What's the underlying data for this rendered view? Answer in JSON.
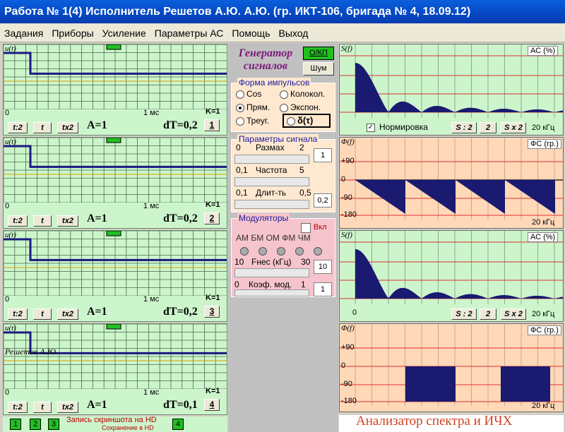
{
  "title": "Работа № 1(4)  Исполнитель Решетов А.Ю.  А.Ю. (гр. ИКТ-106, бригада № 4, 18.09.12)",
  "menu": [
    "Задания",
    "Приборы",
    "Усиление",
    "Параметры АС",
    "Помощь",
    "Выход"
  ],
  "osc": [
    {
      "ylabel": "u(t)",
      "x0": "0",
      "x1": "1 мс",
      "k": "K=1",
      "b1": "t:2",
      "b2": "t",
      "b3": "tx2",
      "amp": "A=1",
      "dt": "dT=0,2",
      "num": "1",
      "signature": "",
      "level": 0.55
    },
    {
      "ylabel": "u(t)",
      "x0": "0",
      "x1": "1 мс",
      "k": "K=1",
      "b1": "t:2",
      "b2": "t",
      "b3": "tx2",
      "amp": "A=1",
      "dt": "dT=0,2",
      "num": "2",
      "signature": "",
      "level": 0.55
    },
    {
      "ylabel": "u(t)",
      "x0": "0",
      "x1": "1 мс",
      "k": "K=1",
      "b1": "t:2",
      "b2": "t",
      "b3": "tx2",
      "amp": "A=1",
      "dt": "dT=0,2",
      "num": "3",
      "signature": "",
      "level": 0.55
    },
    {
      "ylabel": "u(t)",
      "x0": "0",
      "x1": "1 мс",
      "k": "K=1",
      "b1": "t:2",
      "b2": "t",
      "b3": "tx2",
      "amp": "A=1",
      "dt": "dT=0,1",
      "num": "4",
      "signature": "Решетов А.Ю.",
      "level": 0.55
    }
  ],
  "generator": {
    "title1": "Генератор",
    "title2": "сигналов",
    "okp": "О/КП",
    "noise": "Шум"
  },
  "pulse": {
    "caption": "Форма  импульсов",
    "options": [
      "Cos",
      "Колокол.",
      "Прям.",
      "Экспон.",
      "Треуг."
    ],
    "selected": "Прям.",
    "delta": "δ(τ)"
  },
  "params": {
    "caption": "Параметры сигнала",
    "rows": [
      {
        "min": "0",
        "label": "Размах",
        "max": "2",
        "value": "1"
      },
      {
        "min": "0,1",
        "label": "Частота",
        "max": "5",
        "value": ""
      },
      {
        "min": "0,1",
        "label": "Длит-ть",
        "max": "0,5",
        "value": "0,2"
      }
    ]
  },
  "mod": {
    "caption": "Модуляторы",
    "on": "Вкл",
    "types": [
      "АМ",
      "БМ",
      "ОМ",
      "ФМ",
      "ЧМ"
    ],
    "r1": {
      "min": "10",
      "label": "Fнес (кГц)",
      "max": "30",
      "value": "10"
    },
    "r2": {
      "min": "0",
      "label": "Коэф. мод.",
      "max": "1",
      "value": "1"
    }
  },
  "spec1": {
    "ylabel": "S(f)",
    "badge": "АС (%)",
    "norm": "Нормировка",
    "b1": "S : 2",
    "b2": "2",
    "b3": "S x 2",
    "unit": "20 кГц",
    "xstart": ""
  },
  "phase1": {
    "ylabel": "Φ(f)",
    "badge": "ФС (гр.)",
    "ticks": [
      "+90",
      "0",
      "-90",
      "-180"
    ],
    "unit": "20 кГц"
  },
  "spec2": {
    "ylabel": "S(f)",
    "badge": "АС (%)",
    "b1": "S : 2",
    "b2": "2",
    "b3": "S x 2",
    "unit": "20 кГц",
    "xstart": "0"
  },
  "phase2": {
    "ylabel": "Φ(f)",
    "badge": "ФС (гр.)",
    "ticks": [
      "+90",
      "0",
      "-90",
      "-180"
    ],
    "unit": "20 кГц"
  },
  "footer": {
    "rec1": "Запись скриншота на HD",
    "rec2": "Сохранение в HD",
    "g": [
      "1",
      "2",
      "3",
      "4"
    ],
    "analyzer": "Анализатор спектра и ИЧХ"
  }
}
